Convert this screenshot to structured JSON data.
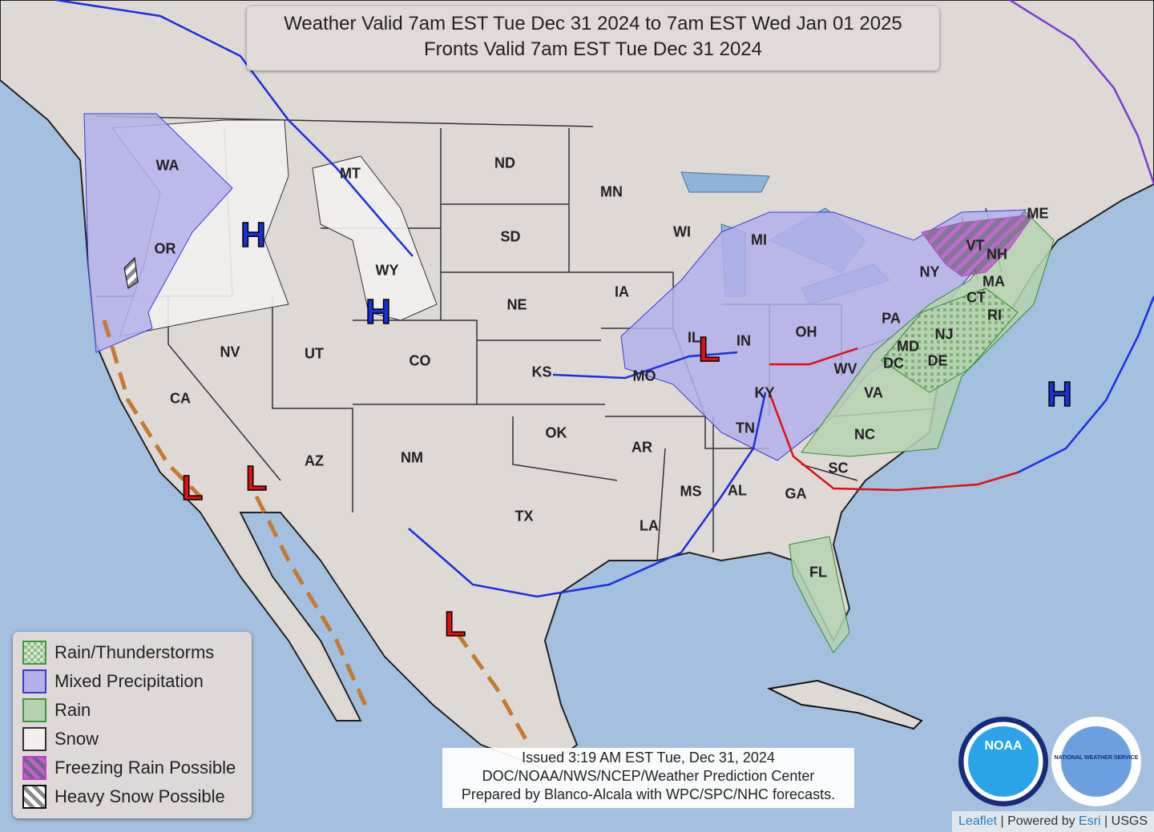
{
  "title": {
    "line1": "Weather Valid 7am EST Tue Dec 31 2024 to 7am EST Wed Jan 01 2025",
    "line2": "Fronts Valid 7am EST Tue Dec 31 2024"
  },
  "legend": [
    {
      "label": "Rain/Thunderstorms",
      "color": "#9cc89a"
    },
    {
      "label": "Mixed Precipitation",
      "color": "#b3b0ea"
    },
    {
      "label": "Rain",
      "color": "#b6d2b0"
    },
    {
      "label": "Snow",
      "color": "#f2efee"
    },
    {
      "label": "Freezing Rain Possible",
      "color": "#b04cc4"
    },
    {
      "label": "Heavy Snow Possible",
      "color": "#9a9a9a"
    }
  ],
  "states": [
    "WA",
    "OR",
    "CA",
    "NV",
    "UT",
    "AZ",
    "MT",
    "WY",
    "CO",
    "NM",
    "ND",
    "SD",
    "NE",
    "KS",
    "OK",
    "TX",
    "MN",
    "IA",
    "MO",
    "AR",
    "LA",
    "WI",
    "IL",
    "MI",
    "IN",
    "OH",
    "KY",
    "TN",
    "MS",
    "AL",
    "GA",
    "FL",
    "SC",
    "NC",
    "VA",
    "WV",
    "PA",
    "NY",
    "VT",
    "NH",
    "ME",
    "MA",
    "CT",
    "RI",
    "NJ",
    "DE",
    "MD",
    "DC"
  ],
  "pressure_centers": [
    {
      "type": "H",
      "color": "#1a2fd6"
    },
    {
      "type": "H",
      "color": "#1a2fd6"
    },
    {
      "type": "H",
      "color": "#1a2fd6"
    },
    {
      "type": "L",
      "color": "#e01010"
    },
    {
      "type": "L",
      "color": "#e01010"
    },
    {
      "type": "L",
      "color": "#e01010"
    },
    {
      "type": "L",
      "color": "#e01010"
    }
  ],
  "issued": {
    "line1": "Issued  3:19 AM EST  Tue, Dec 31, 2024",
    "line2": "DOC/NOAA/NWS/NCEP/Weather Prediction Center",
    "line3": "Prepared by Blanco-Alcala with WPC/SPC/NHC forecasts."
  },
  "logos": {
    "noaa": "NOAA",
    "nws": "NATIONAL WEATHER SERVICE"
  },
  "attribution": {
    "leaflet": "Leaflet",
    "sep1": " | Powered by ",
    "esri": "Esri",
    "sep2": " | USGS"
  },
  "colors": {
    "ocean": "#a3c1de",
    "land": "#dfd9d6",
    "cold_front": "#1a2fe0",
    "warm_front": "#e01010",
    "occluded_front": "#7a3fd0",
    "trough": "#c47a30"
  }
}
